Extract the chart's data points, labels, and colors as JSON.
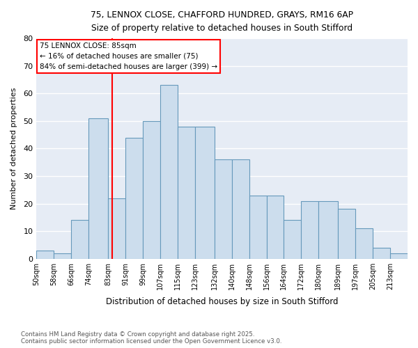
{
  "title_line1": "75, LENNOX CLOSE, CHAFFORD HUNDRED, GRAYS, RM16 6AP",
  "title_line2": "Size of property relative to detached houses in South Stifford",
  "xlabel": "Distribution of detached houses by size in South Stifford",
  "ylabel": "Number of detached properties",
  "bar_color": "#ccdded",
  "bar_edge_color": "#6699bb",
  "bg_color": "#e6ecf5",
  "grid_color": "#ffffff",
  "annotation_text": "75 LENNOX CLOSE: 85sqm\n← 16% of detached houses are smaller (75)\n84% of semi-detached houses are larger (399) →",
  "redline_x": 85,
  "bin_lefts": [
    50,
    58,
    66,
    74,
    83,
    91,
    99,
    107,
    115,
    123,
    132,
    140,
    148,
    156,
    164,
    172,
    180,
    189,
    197,
    205,
    213
  ],
  "bin_rights": [
    58,
    66,
    74,
    83,
    91,
    99,
    107,
    115,
    123,
    132,
    140,
    148,
    156,
    164,
    172,
    180,
    189,
    197,
    205,
    213,
    221
  ],
  "bar_heights": [
    3,
    2,
    14,
    51,
    22,
    44,
    50,
    63,
    48,
    48,
    36,
    36,
    23,
    23,
    14,
    21,
    21,
    18,
    11,
    4,
    2
  ],
  "tick_labels": [
    "50sqm",
    "58sqm",
    "66sqm",
    "74sqm",
    "83sqm",
    "91sqm",
    "99sqm",
    "107sqm",
    "115sqm",
    "123sqm",
    "132sqm",
    "140sqm",
    "148sqm",
    "156sqm",
    "164sqm",
    "172sqm",
    "180sqm",
    "189sqm",
    "197sqm",
    "205sqm",
    "213sqm"
  ],
  "ylim": [
    0,
    80
  ],
  "yticks": [
    0,
    10,
    20,
    30,
    40,
    50,
    60,
    70,
    80
  ],
  "footnote": "Contains HM Land Registry data © Crown copyright and database right 2025.\nContains public sector information licensed under the Open Government Licence v3.0."
}
